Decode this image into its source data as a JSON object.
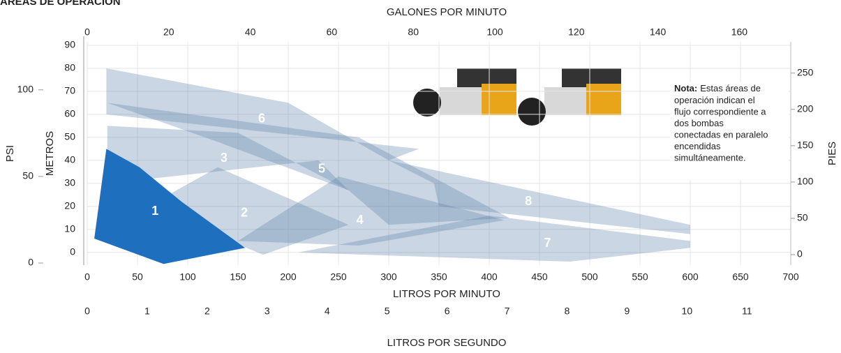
{
  "chart_data": {
    "type": "area-regions",
    "title": "ÁREAS DE OPERACIÓN",
    "x_axes": [
      {
        "label": "LITROS POR MINUTO",
        "lim": [
          0,
          700
        ],
        "ticks": [
          0,
          50,
          100,
          150,
          200,
          250,
          300,
          350,
          400,
          450,
          500,
          550,
          600,
          650,
          700
        ]
      },
      {
        "label": "GALONES POR MINUTO",
        "lim": [
          0,
          172.6
        ],
        "ticks": [
          0,
          20,
          40,
          60,
          80,
          100,
          120,
          140,
          160
        ]
      },
      {
        "label": "LITROS POR SEGUNDO",
        "lim": [
          0,
          11.73
        ],
        "ticks": [
          0,
          1,
          2,
          3,
          4,
          5,
          6,
          7,
          8,
          9,
          10,
          11
        ]
      }
    ],
    "y_axes": [
      {
        "label": "METROS",
        "lim": [
          -5.5,
          91.5
        ],
        "ticks": [
          0,
          10,
          20,
          30,
          40,
          50,
          60,
          70,
          80,
          90
        ]
      },
      {
        "label": "PSI",
        "lim": [
          -1.2,
          127.7
        ],
        "ticks": [
          0,
          50,
          100
        ]
      },
      {
        "label": "PIES",
        "lim": [
          -14.4,
          293
        ],
        "ticks": [
          0,
          50,
          100,
          150,
          200,
          250
        ]
      }
    ],
    "grid": true,
    "series": [
      {
        "name": "6",
        "color": "#5d84ab",
        "x": [
          19,
          19,
          200,
          300,
          330
        ],
        "y": [
          60,
          80,
          65,
          40,
          45
        ]
      },
      {
        "name": "8",
        "color": "#5d84ab",
        "x": [
          300,
          600,
          600,
          350,
          345
        ],
        "y": [
          40,
          12,
          8,
          20,
          30
        ]
      },
      {
        "name": "5",
        "color": "#5d84ab",
        "x": [
          130,
          20,
          270,
          420,
          300,
          260
        ],
        "y": [
          48,
          65,
          50,
          15,
          12,
          27
        ]
      },
      {
        "name": "7",
        "color": "#5d84ab",
        "x": [
          210,
          400,
          600,
          600,
          480
        ],
        "y": [
          0,
          16,
          5,
          2,
          -4
        ]
      },
      {
        "name": "3",
        "color": "#5d84ab",
        "x": [
          20,
          20,
          150,
          260,
          230
        ],
        "y": [
          30,
          55,
          52,
          27,
          40
        ]
      },
      {
        "name": "4",
        "color": "#5d84ab",
        "x": [
          150,
          250,
          415,
          270
        ],
        "y": [
          5,
          33,
          14,
          3
        ]
      },
      {
        "name": "2",
        "color": "#5d84ab",
        "x": [
          60,
          130,
          260,
          175
        ],
        "y": [
          20,
          37,
          12,
          -1
        ]
      },
      {
        "name": "1",
        "color": "#1f6fbf",
        "x": [
          7,
          19,
          52,
          94,
          157,
          76
        ],
        "y": [
          6,
          45,
          37,
          22,
          2,
          -5
        ]
      }
    ],
    "note": {
      "bold": "Nota:",
      "lines": [
        "Estas áreas de",
        "operación indican el",
        "flujo correspondiente a",
        "dos bombas",
        "conectadas en paralelo",
        "encendidas",
        "simultáneamente."
      ]
    }
  }
}
